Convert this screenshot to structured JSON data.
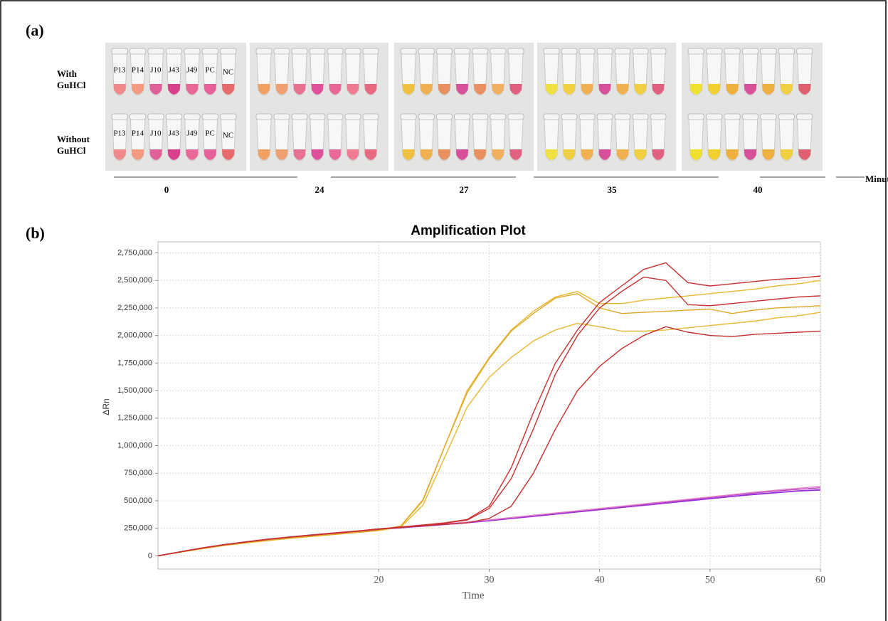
{
  "panel_a": {
    "label": "(a)",
    "rows": [
      [
        "With",
        "GuHCl"
      ],
      [
        "Without",
        "GuHCl"
      ]
    ],
    "tube_labels": [
      "P13",
      "P14",
      "J10",
      "J43",
      "J49",
      "PC",
      "NC"
    ],
    "times": [
      0,
      24,
      27,
      35,
      40
    ],
    "time_unit": "Minutes"
  },
  "panel_b_label": "(b)",
  "chart_data": {
    "type": "line",
    "title": "Amplification Plot",
    "x_label": "Time",
    "y_label": "ΔRn",
    "xlim": [
      0,
      60
    ],
    "ylim": [
      -120000,
      2850000
    ],
    "xticks": [
      20,
      30,
      40,
      50,
      60
    ],
    "yticks": [
      0,
      {
        "value": 250000,
        "label": "250,000"
      },
      {
        "value": 500000,
        "label": "500,000"
      },
      {
        "value": 750000,
        "label": "750,000"
      },
      {
        "value": 1000000,
        "label": "1,000,000"
      },
      {
        "value": 1250000,
        "label": "1,250,000"
      },
      {
        "value": 1500000,
        "label": "1,500,000"
      },
      {
        "value": 1750000,
        "label": "1,750,000"
      },
      {
        "value": 2000000,
        "label": "2,000,000"
      },
      {
        "value": 2250000,
        "label": "2,250,000"
      },
      {
        "value": 2500000,
        "label": "2,500,000"
      },
      {
        "value": 2750000,
        "label": "2,750,000"
      }
    ],
    "grid": true,
    "x": [
      0,
      2,
      4,
      6,
      8,
      10,
      12,
      14,
      16,
      18,
      20,
      22,
      24,
      26,
      28,
      30,
      32,
      34,
      36,
      38,
      40,
      42,
      44,
      46,
      48,
      50,
      52,
      54,
      56,
      58,
      60
    ],
    "series": [
      {
        "color": "#7a1fd6",
        "values": [
          0,
          35000,
          70000,
          100000,
          125000,
          150000,
          170000,
          188000,
          205000,
          222000,
          240000,
          255000,
          270000,
          285000,
          300000,
          320000,
          340000,
          360000,
          380000,
          400000,
          420000,
          440000,
          460000,
          480000,
          500000,
          520000,
          540000,
          560000,
          575000,
          590000,
          600000
        ]
      },
      {
        "color": "#9b30e0",
        "values": [
          0,
          34000,
          68000,
          98000,
          124000,
          148000,
          168000,
          187000,
          204000,
          221000,
          238000,
          254000,
          269000,
          284000,
          300000,
          318000,
          338000,
          358000,
          378000,
          398000,
          418000,
          438000,
          458000,
          478000,
          498000,
          518000,
          538000,
          556000,
          572000,
          588000,
          596000
        ]
      },
      {
        "color": "#c040c0",
        "values": [
          0,
          36000,
          72000,
          102000,
          127000,
          152000,
          172000,
          190000,
          207000,
          224000,
          242000,
          258000,
          273000,
          288000,
          304000,
          324000,
          345000,
          366000,
          386000,
          406000,
          426000,
          446000,
          466000,
          487000,
          508000,
          529000,
          550000,
          570000,
          588000,
          604000,
          618000
        ]
      },
      {
        "color": "#e080c8",
        "values": [
          0,
          37000,
          73000,
          103000,
          128000,
          153000,
          173000,
          192000,
          209000,
          226000,
          244000,
          260000,
          276000,
          291000,
          307000,
          327000,
          348000,
          369000,
          389000,
          410000,
          430000,
          451000,
          472000,
          493000,
          514000,
          535000,
          556000,
          577000,
          596000,
          614000,
          630000
        ]
      },
      {
        "color": "#e8b830",
        "values": [
          0,
          33000,
          65000,
          95000,
          118000,
          140000,
          160000,
          178000,
          195000,
          212000,
          230000,
          270000,
          500000,
          1000000,
          1500000,
          1800000,
          2050000,
          2220000,
          2350000,
          2400000,
          2290000,
          2290000,
          2320000,
          2340000,
          2360000,
          2380000,
          2400000,
          2420000,
          2450000,
          2470000,
          2500000
        ]
      },
      {
        "color": "#e8b830",
        "values": [
          0,
          33000,
          64000,
          94000,
          117000,
          139000,
          159000,
          177000,
          194000,
          211000,
          229000,
          262000,
          460000,
          900000,
          1350000,
          1620000,
          1800000,
          1950000,
          2050000,
          2110000,
          2080000,
          2040000,
          2040000,
          2050000,
          2070000,
          2090000,
          2110000,
          2130000,
          2160000,
          2180000,
          2210000
        ]
      },
      {
        "color": "#e0a828",
        "values": [
          0,
          34000,
          66000,
          96000,
          119000,
          141000,
          161000,
          179000,
          196000,
          213000,
          231000,
          272000,
          510000,
          1000000,
          1480000,
          1790000,
          2040000,
          2200000,
          2340000,
          2380000,
          2250000,
          2200000,
          2210000,
          2220000,
          2230000,
          2240000,
          2200000,
          2230000,
          2250000,
          2260000,
          2270000
        ]
      },
      {
        "color": "#c83030",
        "values": [
          0,
          36000,
          72000,
          102000,
          128000,
          152000,
          172000,
          190000,
          208000,
          225000,
          245000,
          262000,
          280000,
          300000,
          330000,
          450000,
          800000,
          1300000,
          1750000,
          2050000,
          2300000,
          2450000,
          2600000,
          2660000,
          2480000,
          2450000,
          2470000,
          2490000,
          2510000,
          2520000,
          2540000
        ]
      },
      {
        "color": "#c83030",
        "values": [
          0,
          36000,
          71000,
          101000,
          127000,
          151000,
          171000,
          189000,
          207000,
          224000,
          243000,
          260000,
          278000,
          297000,
          325000,
          430000,
          700000,
          1150000,
          1650000,
          2000000,
          2250000,
          2400000,
          2530000,
          2500000,
          2280000,
          2270000,
          2290000,
          2310000,
          2330000,
          2350000,
          2360000
        ]
      },
      {
        "color": "#c83030",
        "values": [
          0,
          35000,
          70000,
          100000,
          126000,
          150000,
          170000,
          188000,
          206000,
          223000,
          241000,
          257000,
          272000,
          287000,
          300000,
          340000,
          450000,
          750000,
          1150000,
          1500000,
          1720000,
          1880000,
          2000000,
          2080000,
          2030000,
          2000000,
          1990000,
          2010000,
          2020000,
          2030000,
          2040000
        ]
      }
    ]
  }
}
